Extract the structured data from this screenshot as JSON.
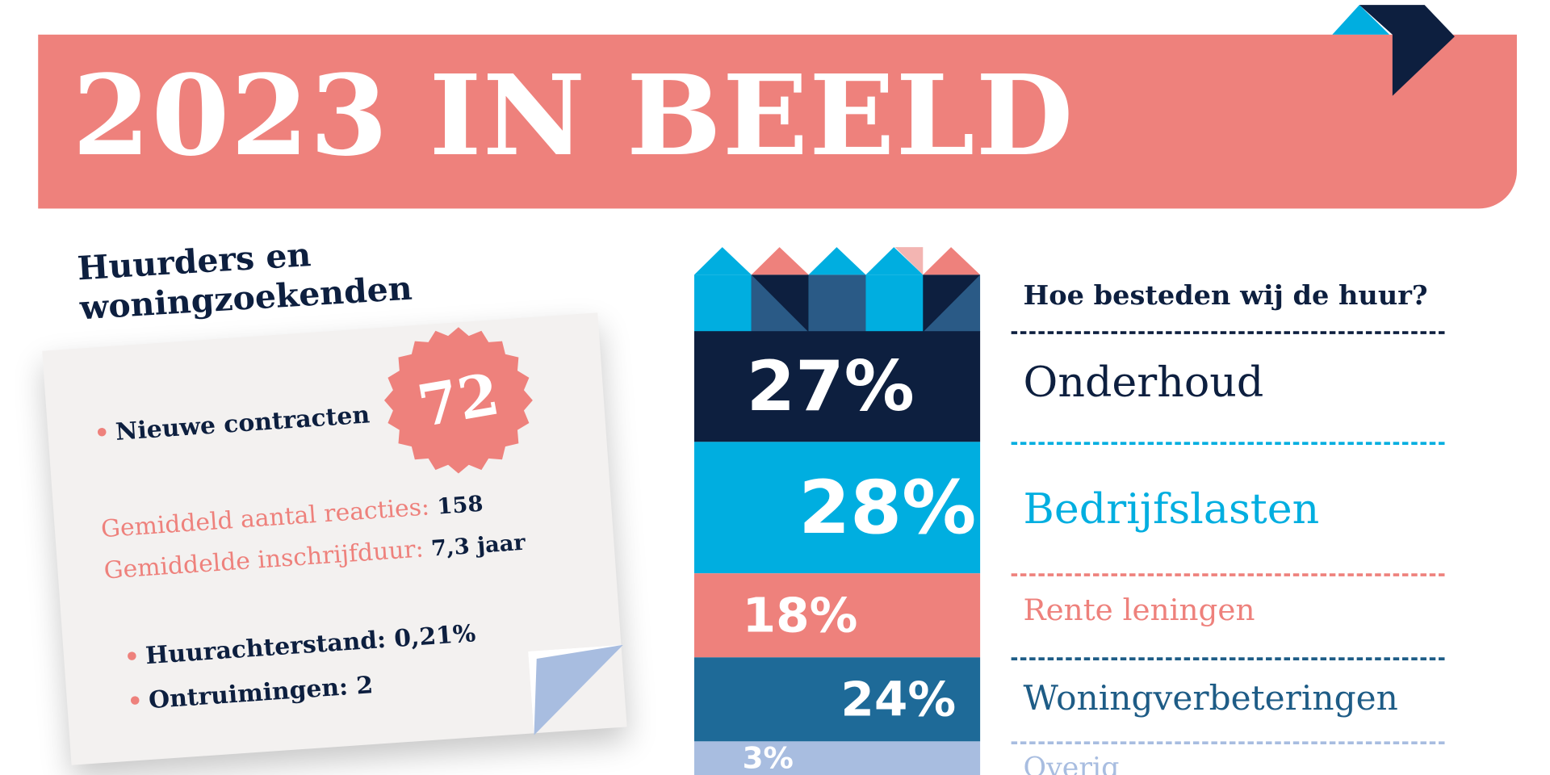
{
  "header": {
    "title": "2023 IN BEELD"
  },
  "tenants": {
    "title_lines": [
      "Huurders en",
      "woningzoekenden"
    ],
    "new_contracts": {
      "label": "Nieuwe contracten",
      "value": "72"
    },
    "stats": [
      {
        "label": "Gemiddeld aantal reacties:",
        "value": "158"
      },
      {
        "label": "Gemiddelde inschrijfduur:",
        "value": "7,3 jaar"
      }
    ],
    "bullets": [
      {
        "label": "Huurachterstand:",
        "value": "0,21%"
      },
      {
        "label": "Ontruimingen:",
        "value": "2"
      }
    ]
  },
  "rent": {
    "title": "Hoe besteden wij de huur?",
    "items": [
      {
        "share": "27%",
        "label": "Onderhoud"
      },
      {
        "share": "28%",
        "label": "Bedrijfslasten"
      },
      {
        "share": "18%",
        "label": "Rente leningen"
      },
      {
        "share": "24%",
        "label": "Woningverbeteringen"
      },
      {
        "share": "3%",
        "label": "Overig"
      }
    ]
  }
}
